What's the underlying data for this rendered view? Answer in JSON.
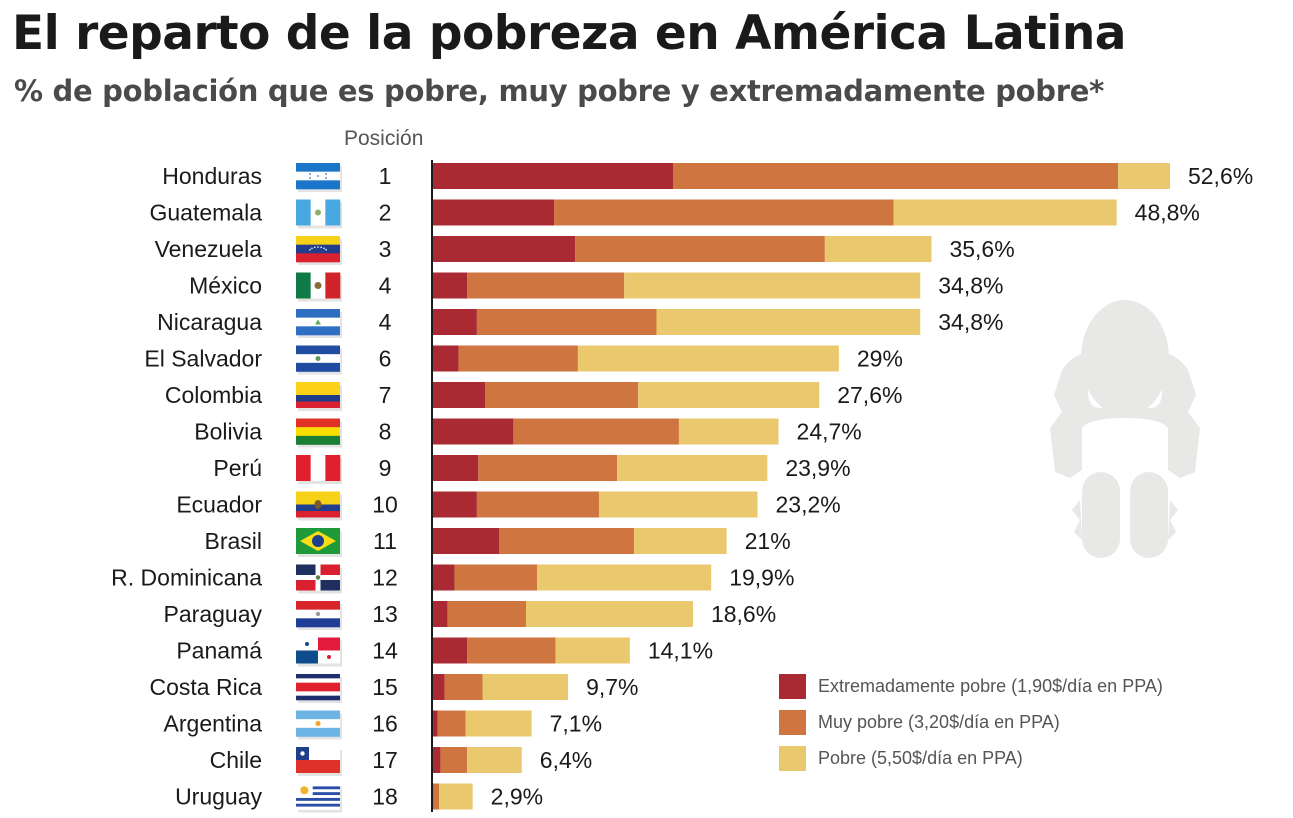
{
  "header": {
    "title": "El reparto de la pobreza en América Latina",
    "subtitle": "% de población que es pobre, muy pobre y extremadamente pobre*",
    "position_label": "Posición"
  },
  "colors": {
    "extreme": "#A92A32",
    "very_poor": "#CE7540",
    "poor": "#EAC96E",
    "silhouette": "#E8E8E6"
  },
  "legend": [
    {
      "key": "extreme",
      "label": "Extremadamente pobre (1,90$/día en PPA)"
    },
    {
      "key": "very_poor",
      "label": "Muy pobre (3,20$/día en PPA)"
    },
    {
      "key": "poor",
      "label": "Pobre (5,50$/día en PPA)"
    }
  ],
  "decoration": {
    "icon": "sad-person-sitting-silhouette"
  },
  "chart_data": {
    "type": "bar",
    "orientation": "horizontal",
    "stacked": true,
    "title": "El reparto de la pobreza en América Latina",
    "subtitle": "% de población que es pobre, muy pobre y extremadamente pobre*",
    "xlabel": "",
    "ylabel": "",
    "xlim": [
      0,
      55
    ],
    "grid": false,
    "legend_position": "bottom-right",
    "categories": [
      "Honduras",
      "Guatemala",
      "Venezuela",
      "México",
      "Nicaragua",
      "El Salvador",
      "Colombia",
      "Bolivia",
      "Perú",
      "Ecuador",
      "Brasil",
      "R. Dominicana",
      "Paraguay",
      "Panamá",
      "Costa Rica",
      "Argentina",
      "Chile",
      "Uruguay"
    ],
    "ranks": [
      "1",
      "2",
      "3",
      "4",
      "4",
      "6",
      "7",
      "8",
      "9",
      "10",
      "11",
      "12",
      "13",
      "14",
      "15",
      "16",
      "17",
      "18"
    ],
    "flags": [
      "honduras",
      "guatemala",
      "venezuela",
      "mexico",
      "nicaragua",
      "el-salvador",
      "colombia",
      "bolivia",
      "peru",
      "ecuador",
      "brasil",
      "republica-dominicana",
      "paraguay",
      "panama",
      "costa-rica",
      "argentina",
      "chile",
      "uruguay"
    ],
    "totals": [
      52.6,
      48.8,
      35.6,
      34.8,
      34.8,
      29,
      27.6,
      24.7,
      23.9,
      23.2,
      21,
      19.9,
      18.6,
      14.1,
      9.7,
      7.1,
      6.4,
      2.9
    ],
    "total_labels": [
      "52,6%",
      "48,8%",
      "35,6%",
      "34,8%",
      "34,8%",
      "29%",
      "27,6%",
      "24,7%",
      "23,9%",
      "23,2%",
      "21%",
      "19,9%",
      "18,6%",
      "14,1%",
      "9,7%",
      "7,1%",
      "6,4%",
      "2,9%"
    ],
    "series": [
      {
        "name": "Extremadamente pobre (1,90$/día en PPA)",
        "key": "extreme",
        "values": [
          17.2,
          8.7,
          10.2,
          2.5,
          3.2,
          1.9,
          3.8,
          5.8,
          3.3,
          3.2,
          4.8,
          1.6,
          1.1,
          2.5,
          0.9,
          0.4,
          0.6,
          0.1
        ]
      },
      {
        "name": "Muy pobre (3,20$/día en PPA)",
        "key": "very_poor",
        "values": [
          31.7,
          24.2,
          17.8,
          11.2,
          12.8,
          8.5,
          10.9,
          11.8,
          9.9,
          8.7,
          9.6,
          5.9,
          5.6,
          6.3,
          2.7,
          2.0,
          1.9,
          0.4
        ]
      },
      {
        "name": "Pobre (5,50$/día en PPA)",
        "key": "poor",
        "values": [
          3.7,
          15.9,
          7.6,
          21.1,
          18.8,
          18.6,
          12.9,
          7.1,
          10.7,
          11.3,
          6.6,
          12.4,
          11.9,
          5.3,
          6.1,
          4.7,
          3.9,
          2.4
        ]
      }
    ]
  }
}
